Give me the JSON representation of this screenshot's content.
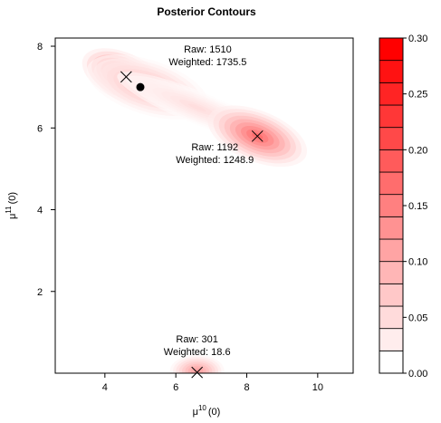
{
  "chart_data": {
    "type": "contour",
    "title": "Posterior Contours",
    "xlabel": {
      "base": "μ",
      "sup": "10",
      "rest": "(0)"
    },
    "ylabel": {
      "base": "μ",
      "sup": "11",
      "rest": "(0)"
    },
    "xlim": [
      2.6,
      11.0
    ],
    "ylim": [
      0.0,
      8.2
    ],
    "xticks": [
      4,
      6,
      8,
      10
    ],
    "yticks": [
      2,
      4,
      6,
      8
    ],
    "grid": false,
    "modes": [
      {
        "x": 4.6,
        "y": 7.25,
        "marker": "x",
        "raw_label": "Raw: 1510",
        "weighted_label": "Weighted: 1735.5",
        "label_x": 6.9,
        "label_y": 7.85
      },
      {
        "x": 8.3,
        "y": 5.8,
        "marker": "x",
        "raw_label": "Raw: 1192",
        "weighted_label": "Weighted: 1248.9",
        "label_x": 7.1,
        "label_y": 5.45
      },
      {
        "x": 6.6,
        "y": 0.02,
        "marker": "x",
        "raw_label": "Raw: 301",
        "weighted_label": "Weighted: 18.6",
        "label_x": 6.6,
        "label_y": 0.75
      }
    ],
    "point": {
      "x": 5.0,
      "y": 7.0,
      "marker": "dot"
    },
    "colorbar": {
      "min": 0.0,
      "max": 0.3,
      "levels": 15,
      "tick_values": [
        0.0,
        0.05,
        0.1,
        0.15,
        0.2,
        0.25,
        0.3
      ],
      "tick_labels": [
        "0.00",
        "0.05",
        "0.10",
        "0.15",
        "0.20",
        "0.25",
        "0.30"
      ],
      "low_color": "#ffffff",
      "high_color": "#ff0000"
    }
  }
}
